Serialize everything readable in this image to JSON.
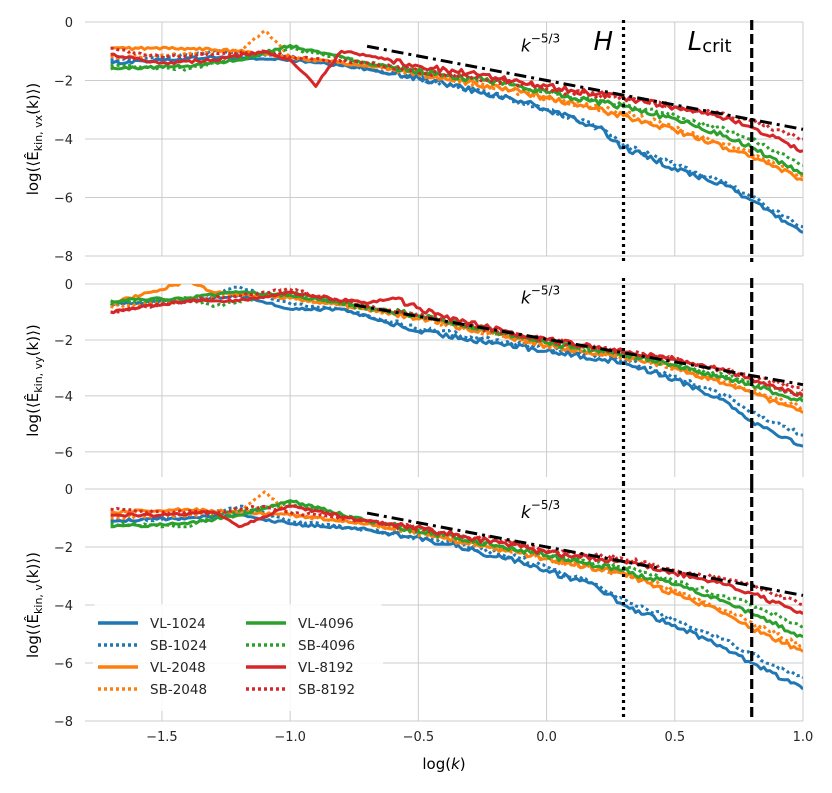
{
  "chart_data": [
    {
      "type": "line",
      "panel": "top",
      "ylabel_main": "log(⟨Ê",
      "ylabel_sub": "kin, vx",
      "ylabel_tail": "(k)⟩)",
      "xlim": [
        -1.8,
        1.0
      ],
      "ylim": [
        -8,
        0
      ],
      "yticks": [
        0,
        -2,
        -4,
        -6,
        -8
      ],
      "slope_label": "k",
      "slope_exp": "−5/3",
      "slope": {
        "x0": -0.7,
        "y0": -0.83,
        "x1": 1.0,
        "y1": -3.67
      },
      "vlines": [
        {
          "x": 0.3,
          "label": "H",
          "style": "dotted"
        },
        {
          "x": 0.8,
          "label": "L",
          "label_sub": "crit",
          "style": "dashed"
        }
      ],
      "series": [
        {
          "name": "VL-1024",
          "color": "#1f77b4",
          "dash": "solid",
          "x": [
            -1.7,
            -1.5,
            -1.3,
            -1.0,
            -0.7,
            -0.4,
            -0.1,
            0.0,
            0.2,
            0.3,
            0.5,
            0.7,
            0.8,
            1.0
          ],
          "y": [
            -1.4,
            -1.3,
            -1.2,
            -1.3,
            -1.6,
            -2.1,
            -2.7,
            -3.0,
            -3.6,
            -4.3,
            -5.0,
            -5.6,
            -6.1,
            -7.2
          ]
        },
        {
          "name": "SB-1024",
          "color": "#1f77b4",
          "dash": "dotted",
          "x": [
            -1.7,
            -1.5,
            -1.3,
            -1.0,
            -0.7,
            -0.4,
            -0.1,
            0.0,
            0.2,
            0.3,
            0.5,
            0.7,
            0.8,
            1.0
          ],
          "y": [
            -1.3,
            -1.2,
            -1.0,
            -1.2,
            -1.6,
            -2.1,
            -2.7,
            -3.0,
            -3.6,
            -4.2,
            -4.9,
            -5.5,
            -6.0,
            -7.0
          ]
        },
        {
          "name": "VL-2048",
          "color": "#ff7f0e",
          "dash": "solid",
          "x": [
            -1.7,
            -1.4,
            -1.2,
            -1.0,
            -0.7,
            -0.4,
            -0.1,
            0.0,
            0.3,
            0.5,
            0.7,
            0.8,
            1.0
          ],
          "y": [
            -0.9,
            -0.9,
            -1.0,
            -1.2,
            -1.5,
            -1.9,
            -2.4,
            -2.6,
            -3.2,
            -3.7,
            -4.3,
            -4.6,
            -5.4
          ]
        },
        {
          "name": "SB-2048",
          "color": "#ff7f0e",
          "dash": "dotted",
          "x": [
            -1.7,
            -1.4,
            -1.2,
            -1.1,
            -1.0,
            -0.7,
            -0.4,
            -0.1,
            0.0,
            0.3,
            0.5,
            0.7,
            0.8,
            1.0
          ],
          "y": [
            -1.2,
            -1.1,
            -1.0,
            -0.3,
            -1.2,
            -1.5,
            -1.9,
            -2.4,
            -2.6,
            -3.1,
            -3.6,
            -4.2,
            -4.5,
            -5.3
          ]
        },
        {
          "name": "VL-4096",
          "color": "#2ca02c",
          "dash": "solid",
          "x": [
            -1.7,
            -1.4,
            -1.2,
            -1.0,
            -0.7,
            -0.4,
            -0.1,
            0.0,
            0.3,
            0.5,
            0.7,
            0.8,
            1.0
          ],
          "y": [
            -1.6,
            -1.5,
            -1.3,
            -0.8,
            -1.4,
            -1.8,
            -2.2,
            -2.4,
            -2.9,
            -3.3,
            -3.9,
            -4.3,
            -5.2
          ]
        },
        {
          "name": "SB-4096",
          "color": "#2ca02c",
          "dash": "dotted",
          "x": [
            -1.7,
            -1.4,
            -1.2,
            -1.0,
            -0.7,
            -0.4,
            -0.1,
            0.0,
            0.3,
            0.5,
            0.7,
            0.8,
            1.0
          ],
          "y": [
            -1.5,
            -1.6,
            -1.2,
            -0.9,
            -1.4,
            -1.8,
            -2.2,
            -2.4,
            -2.8,
            -3.2,
            -3.7,
            -4.0,
            -4.9
          ]
        },
        {
          "name": "VL-8192",
          "color": "#d62728",
          "dash": "solid",
          "x": [
            -1.7,
            -1.5,
            -1.3,
            -1.1,
            -1.0,
            -0.9,
            -0.8,
            -0.5,
            -0.2,
            0.0,
            0.3,
            0.5,
            0.7,
            0.8,
            1.0
          ],
          "y": [
            -1.1,
            -1.4,
            -1.3,
            -1.0,
            -1.3,
            -2.2,
            -1.0,
            -1.5,
            -1.9,
            -2.2,
            -2.6,
            -2.9,
            -3.3,
            -3.6,
            -4.4
          ]
        },
        {
          "name": "SB-8192",
          "color": "#d62728",
          "dash": "dotted",
          "x": [
            -1.7,
            -1.5,
            -1.3,
            -1.1,
            -1.0,
            -0.7,
            -0.4,
            -0.1,
            0.0,
            0.3,
            0.5,
            0.7,
            0.8,
            1.0
          ],
          "y": [
            -0.9,
            -1.2,
            -1.1,
            -1.0,
            -1.2,
            -1.4,
            -1.8,
            -2.1,
            -2.3,
            -2.6,
            -2.9,
            -3.2,
            -3.4,
            -4.0
          ]
        }
      ]
    },
    {
      "type": "line",
      "panel": "middle",
      "ylabel_main": "log(⟨Ê",
      "ylabel_sub": "kin, vy",
      "ylabel_tail": "(k)⟩)",
      "xlim": [
        -1.8,
        1.0
      ],
      "ylim": [
        -6.9,
        0
      ],
      "yticks": [
        0,
        -2,
        -4,
        -6
      ],
      "slope_label": "k",
      "slope_exp": "−5/3",
      "slope": {
        "x0": -0.75,
        "y0": -0.75,
        "x1": 1.0,
        "y1": -3.6
      },
      "vlines": [
        {
          "x": 0.3,
          "style": "dotted"
        },
        {
          "x": 0.8,
          "style": "dashed"
        }
      ],
      "series": [
        {
          "name": "VL-1024",
          "color": "#1f77b4",
          "dash": "solid",
          "x": [
            -1.7,
            -1.4,
            -1.2,
            -1.0,
            -0.8,
            -0.5,
            -0.2,
            0.0,
            0.3,
            0.5,
            0.7,
            0.8,
            1.0
          ],
          "y": [
            -0.7,
            -0.6,
            -0.4,
            -0.9,
            -0.9,
            -1.7,
            -2.1,
            -2.4,
            -2.8,
            -3.4,
            -4.2,
            -4.9,
            -5.8
          ]
        },
        {
          "name": "SB-1024",
          "color": "#1f77b4",
          "dash": "dotted",
          "x": [
            -1.7,
            -1.4,
            -1.2,
            -1.0,
            -0.8,
            -0.5,
            -0.2,
            0.0,
            0.3,
            0.5,
            0.7,
            0.8,
            1.0
          ],
          "y": [
            -0.7,
            -0.6,
            -0.1,
            -0.7,
            -0.9,
            -1.6,
            -2.0,
            -2.3,
            -2.7,
            -3.3,
            -4.0,
            -4.6,
            -5.4
          ]
        },
        {
          "name": "VL-2048",
          "color": "#ff7f0e",
          "dash": "solid",
          "x": [
            -1.7,
            -1.4,
            -1.3,
            -1.0,
            -0.7,
            -0.4,
            -0.1,
            0.0,
            0.3,
            0.5,
            0.7,
            0.8,
            1.0
          ],
          "y": [
            -0.7,
            0.1,
            -0.3,
            -0.5,
            -0.9,
            -1.4,
            -2.0,
            -2.2,
            -2.6,
            -3.0,
            -3.6,
            -3.9,
            -4.6
          ]
        },
        {
          "name": "SB-2048",
          "color": "#ff7f0e",
          "dash": "dotted",
          "x": [
            -1.7,
            -1.4,
            -1.2,
            -1.0,
            -0.7,
            -0.4,
            -0.1,
            0.0,
            0.3,
            0.5,
            0.7,
            0.8,
            1.0
          ],
          "y": [
            -0.8,
            -0.6,
            -0.3,
            -0.5,
            -0.9,
            -1.4,
            -2.0,
            -2.2,
            -2.6,
            -3.0,
            -3.5,
            -3.8,
            -4.4
          ]
        },
        {
          "name": "VL-4096",
          "color": "#2ca02c",
          "dash": "solid",
          "x": [
            -1.7,
            -1.4,
            -1.2,
            -1.0,
            -0.7,
            -0.4,
            -0.1,
            0.0,
            0.3,
            0.5,
            0.7,
            0.8,
            1.0
          ],
          "y": [
            -0.6,
            -0.5,
            -0.3,
            -0.4,
            -0.8,
            -1.3,
            -1.9,
            -2.1,
            -2.5,
            -2.9,
            -3.4,
            -3.6,
            -4.2
          ]
        },
        {
          "name": "SB-4096",
          "color": "#2ca02c",
          "dash": "dotted",
          "x": [
            -1.7,
            -1.4,
            -1.3,
            -1.0,
            -0.7,
            -0.4,
            -0.1,
            0.0,
            0.3,
            0.5,
            0.7,
            0.8,
            1.0
          ],
          "y": [
            -0.7,
            -0.5,
            -0.8,
            -0.3,
            -0.9,
            -1.3,
            -1.9,
            -2.1,
            -2.5,
            -2.9,
            -3.3,
            -3.5,
            -4.0
          ]
        },
        {
          "name": "VL-8192",
          "color": "#d62728",
          "dash": "solid",
          "x": [
            -1.7,
            -1.4,
            -1.2,
            -1.0,
            -0.7,
            -0.6,
            -0.4,
            -0.1,
            0.0,
            0.3,
            0.5,
            0.7,
            0.8,
            1.0
          ],
          "y": [
            -1.0,
            -0.6,
            -0.6,
            -0.3,
            -0.7,
            -0.5,
            -1.2,
            -1.8,
            -2.0,
            -2.4,
            -2.7,
            -3.1,
            -3.4,
            -4.0
          ]
        },
        {
          "name": "SB-8192",
          "color": "#d62728",
          "dash": "dotted",
          "x": [
            -1.7,
            -1.4,
            -1.2,
            -1.0,
            -0.7,
            -0.4,
            -0.1,
            0.0,
            0.3,
            0.5,
            0.7,
            0.8,
            1.0
          ],
          "y": [
            -1.0,
            -0.6,
            -0.4,
            -0.2,
            -0.8,
            -1.3,
            -1.9,
            -2.0,
            -2.4,
            -2.7,
            -3.1,
            -3.3,
            -3.8
          ]
        }
      ]
    },
    {
      "type": "line",
      "panel": "bottom",
      "ylabel_main": "log(⟨Ê",
      "ylabel_sub": "kin, v",
      "ylabel_tail": "(k)⟩)",
      "xlim": [
        -1.8,
        1.0
      ],
      "ylim": [
        -8,
        0
      ],
      "yticks": [
        0,
        -2,
        -4,
        -6,
        -8
      ],
      "slope_label": "k",
      "slope_exp": "−5/3",
      "slope": {
        "x0": -0.7,
        "y0": -0.83,
        "x1": 1.0,
        "y1": -3.67
      },
      "vlines": [
        {
          "x": 0.3,
          "style": "dotted"
        },
        {
          "x": 0.8,
          "style": "dashed"
        }
      ],
      "series": [
        {
          "name": "VL-1024",
          "color": "#1f77b4",
          "dash": "solid",
          "x": [
            -1.7,
            -1.4,
            -1.2,
            -1.0,
            -0.7,
            -0.4,
            -0.1,
            0.0,
            0.2,
            0.3,
            0.5,
            0.7,
            0.8,
            1.0
          ],
          "y": [
            -1.1,
            -1.0,
            -0.9,
            -1.2,
            -1.4,
            -1.9,
            -2.5,
            -2.8,
            -3.4,
            -4.0,
            -4.7,
            -5.5,
            -6.0,
            -6.9
          ]
        },
        {
          "name": "SB-1024",
          "color": "#1f77b4",
          "dash": "dotted",
          "x": [
            -1.7,
            -1.4,
            -1.2,
            -1.0,
            -0.7,
            -0.4,
            -0.1,
            0.0,
            0.2,
            0.3,
            0.5,
            0.7,
            0.8,
            1.0
          ],
          "y": [
            -1.1,
            -1.0,
            -0.6,
            -1.1,
            -1.4,
            -1.8,
            -2.4,
            -2.7,
            -3.3,
            -3.8,
            -4.5,
            -5.2,
            -5.7,
            -6.5
          ]
        },
        {
          "name": "VL-2048",
          "color": "#ff7f0e",
          "dash": "solid",
          "x": [
            -1.7,
            -1.4,
            -1.2,
            -1.0,
            -0.7,
            -0.4,
            -0.1,
            0.0,
            0.3,
            0.5,
            0.7,
            0.8,
            1.0
          ],
          "y": [
            -0.8,
            -0.7,
            -0.8,
            -0.9,
            -1.2,
            -1.7,
            -2.2,
            -2.4,
            -2.9,
            -3.6,
            -4.3,
            -4.8,
            -5.6
          ]
        },
        {
          "name": "SB-2048",
          "color": "#ff7f0e",
          "dash": "dotted",
          "x": [
            -1.7,
            -1.4,
            -1.2,
            -1.1,
            -1.0,
            -0.7,
            -0.4,
            -0.1,
            0.0,
            0.3,
            0.5,
            0.7,
            0.8,
            1.0
          ],
          "y": [
            -1.0,
            -0.9,
            -0.8,
            -0.1,
            -0.9,
            -1.2,
            -1.7,
            -2.2,
            -2.4,
            -2.9,
            -3.5,
            -4.2,
            -4.6,
            -5.4
          ]
        },
        {
          "name": "VL-4096",
          "color": "#2ca02c",
          "dash": "solid",
          "x": [
            -1.7,
            -1.4,
            -1.2,
            -1.0,
            -0.7,
            -0.4,
            -0.1,
            0.0,
            0.3,
            0.5,
            0.7,
            0.8,
            1.0
          ],
          "y": [
            -1.3,
            -1.2,
            -0.9,
            -0.4,
            -1.1,
            -1.6,
            -2.1,
            -2.3,
            -2.8,
            -3.3,
            -3.9,
            -4.3,
            -5.1
          ]
        },
        {
          "name": "SB-4096",
          "color": "#2ca02c",
          "dash": "dotted",
          "x": [
            -1.7,
            -1.4,
            -1.3,
            -1.0,
            -0.7,
            -0.4,
            -0.1,
            0.0,
            0.3,
            0.5,
            0.7,
            0.8,
            1.0
          ],
          "y": [
            -1.2,
            -1.3,
            -0.9,
            -0.5,
            -1.1,
            -1.6,
            -2.1,
            -2.3,
            -2.7,
            -3.2,
            -3.7,
            -4.0,
            -4.8
          ]
        },
        {
          "name": "VL-8192",
          "color": "#d62728",
          "dash": "solid",
          "x": [
            -1.7,
            -1.5,
            -1.3,
            -1.2,
            -1.0,
            -0.7,
            -0.4,
            -0.1,
            0.0,
            0.3,
            0.5,
            0.7,
            0.8,
            1.0
          ],
          "y": [
            -0.9,
            -0.9,
            -0.8,
            -1.3,
            -0.6,
            -1.1,
            -1.5,
            -2.0,
            -2.2,
            -2.5,
            -2.9,
            -3.3,
            -3.6,
            -4.3
          ]
        },
        {
          "name": "SB-8192",
          "color": "#d62728",
          "dash": "dotted",
          "x": [
            -1.7,
            -1.5,
            -1.3,
            -1.1,
            -1.0,
            -0.7,
            -0.4,
            -0.1,
            0.0,
            0.3,
            0.5,
            0.7,
            0.8,
            1.0
          ],
          "y": [
            -0.7,
            -0.8,
            -0.8,
            -0.6,
            -0.8,
            -1.1,
            -1.5,
            -1.9,
            -2.1,
            -2.4,
            -2.8,
            -3.1,
            -3.3,
            -4.0
          ]
        }
      ]
    }
  ],
  "x_axis": {
    "label_main": "log(",
    "label_var": "k",
    "label_tail": ")",
    "ticks": [
      -1.5,
      -1.0,
      -0.5,
      0.0,
      0.5,
      1.0
    ],
    "tick_labels": [
      "−1.5",
      "−1.0",
      "−0.5",
      "0.0",
      "0.5",
      "1.0"
    ]
  },
  "legend": {
    "placement": "lower-left of bottom panel",
    "entries": [
      "VL-1024",
      "SB-1024",
      "VL-2048",
      "SB-2048",
      "VL-4096",
      "SB-4096",
      "VL-8192",
      "SB-8192"
    ]
  }
}
